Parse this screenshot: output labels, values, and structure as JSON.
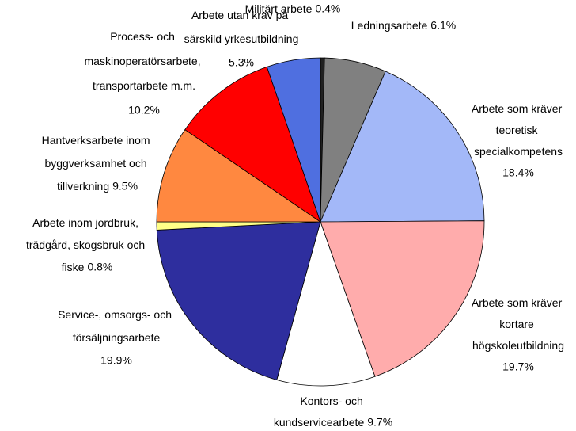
{
  "chart_data": {
    "type": "pie",
    "categories": [
      "Militärt arbete",
      "Ledningsarbete",
      "Arbete som kräver teoretisk specialkompetens",
      "Arbete som kräver kortare högskoleutbildning",
      "Kontors- och kundservicearbete",
      "Service-, omsorgs- och försäljningsarbete",
      "Arbete inom jordbruk, trädgård, skogsbruk och fiske",
      "Hantverksarbete inom byggverksamhet och tillverkning",
      "Process- och maskinoperatörsarbete, transportarbete m.m.",
      "Arbete utan krav på särskild yrkesutbildning"
    ],
    "values": [
      0.4,
      6.1,
      18.4,
      19.7,
      9.7,
      19.9,
      0.8,
      9.5,
      10.2,
      5.3
    ],
    "value_labels": [
      "0.4%",
      "6.1%",
      "18.4%",
      "19.7%",
      "9.7%",
      "19.9%",
      "0.8%",
      "9.5%",
      "10.2%",
      "5.3%"
    ],
    "colors": [
      "#202020",
      "#808080",
      "#a3b8f8",
      "#ffacac",
      "#ffffff",
      "#2e2e9e",
      "#ffff88",
      "#ff8840",
      "#ff0000",
      "#4f6fe0"
    ]
  }
}
